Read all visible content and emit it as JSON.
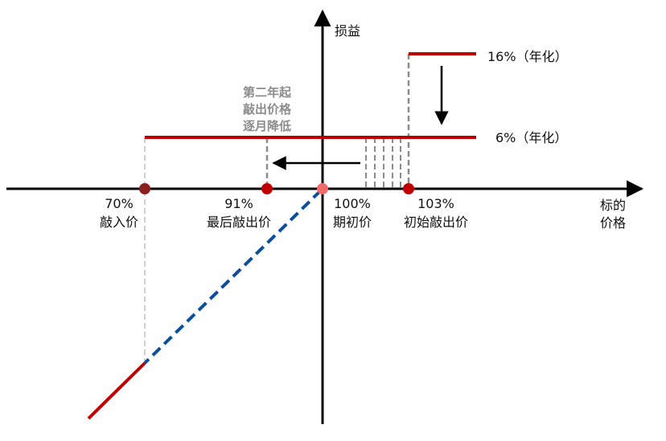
{
  "axes": {
    "y_label": "损益",
    "x_label_line1": "标的",
    "x_label_line2": "价格"
  },
  "levels": {
    "high_coupon": "16%（年化）",
    "low_coupon": "6%（年化）"
  },
  "note": [
    "第二年起",
    "敲出价格",
    "逐月降低"
  ],
  "points": [
    {
      "pct": "70%",
      "name": "敲入价",
      "color": "#8b1e1e"
    },
    {
      "pct": "91%",
      "name": "最后敲出价",
      "color": "#c00000"
    },
    {
      "pct": "100%",
      "name": "期初价",
      "color": "#f26b6b"
    },
    {
      "pct": "103%",
      "name": "初始敲出价",
      "color": "#c00000"
    }
  ],
  "colors": {
    "coupon_line": "#c00000",
    "loss_dashed": "#0b4f9c",
    "guide": "#8c8c8c"
  }
}
